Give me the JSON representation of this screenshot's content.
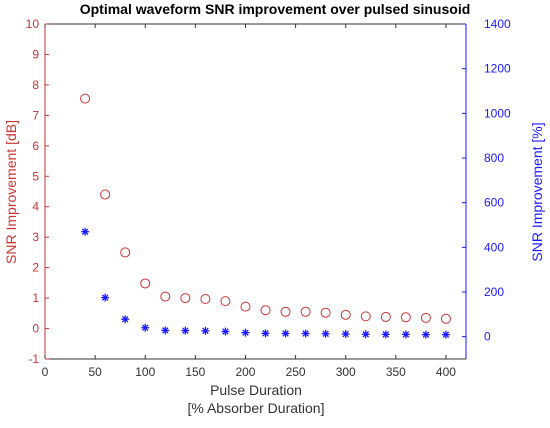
{
  "chart_data": {
    "type": "scatter",
    "title": "Optimal waveform SNR improvement over pulsed sinusoid",
    "xlabel_line1": "Pulse Duration",
    "xlabel_line2": "[% Absorber Duration]",
    "ylabel_left": "SNR Improvement [dB]",
    "ylabel_right": "SNR Improvement [%]",
    "xlim": [
      0,
      420
    ],
    "ylim_left": [
      -1,
      10
    ],
    "ylim_right": [
      -100,
      1400
    ],
    "x_ticks": [
      0,
      50,
      100,
      150,
      200,
      250,
      300,
      350,
      400
    ],
    "y_ticks_left": [
      -1,
      0,
      1,
      2,
      3,
      4,
      5,
      6,
      7,
      8,
      9,
      10
    ],
    "y_ticks_right": [
      0,
      200,
      400,
      600,
      800,
      1000,
      1200,
      1400
    ],
    "grid": false,
    "colors": {
      "left_axis": "#cc3333",
      "right_axis": "#1a1aff",
      "text": "#333333"
    },
    "x": [
      40,
      60,
      80,
      100,
      120,
      140,
      160,
      180,
      200,
      220,
      240,
      260,
      280,
      300,
      320,
      340,
      360,
      380,
      400
    ],
    "series": [
      {
        "axis": "left",
        "marker": "circle",
        "color": "#cc3333",
        "values": [
          7.55,
          4.4,
          2.5,
          1.48,
          1.05,
          1.0,
          0.97,
          0.9,
          0.72,
          0.6,
          0.55,
          0.55,
          0.52,
          0.45,
          0.4,
          0.38,
          0.37,
          0.35,
          0.32
        ]
      },
      {
        "axis": "right",
        "marker": "asterisk",
        "color": "#1a1aff",
        "values": [
          470,
          175,
          78,
          40,
          28,
          27,
          26,
          23,
          18,
          15,
          14,
          14,
          13,
          12,
          11,
          10,
          10,
          9,
          9
        ]
      }
    ]
  }
}
